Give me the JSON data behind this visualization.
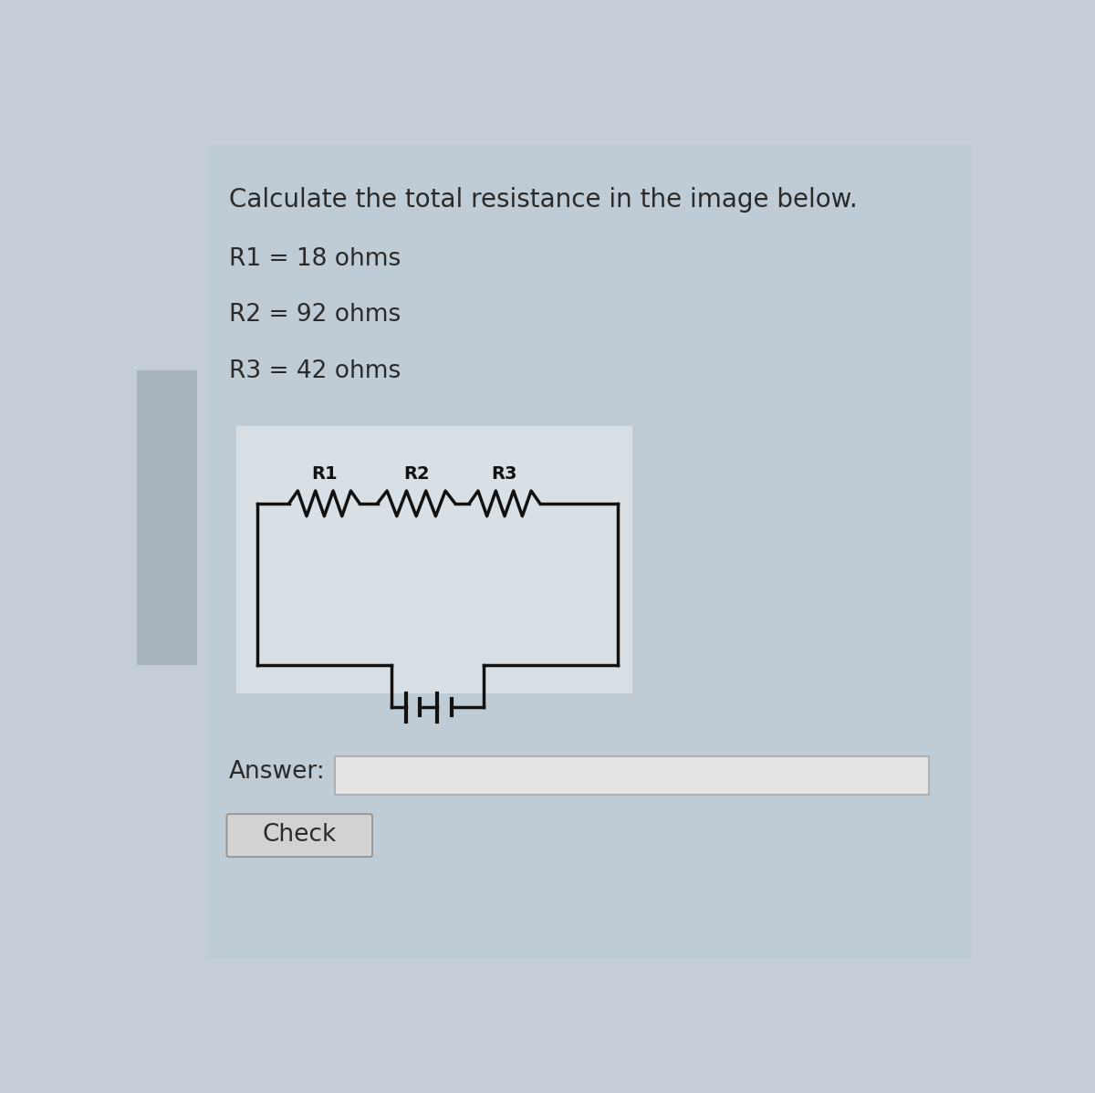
{
  "title": "Calculate the total resistance in the image below.",
  "r1_label": "R1 = 18 ohms",
  "r2_label": "R2 = 92 ohms",
  "r3_label": "R3 = 42 ohms",
  "answer_label": "Answer:",
  "check_label": "Check",
  "bg_outer": "#c5ced6",
  "bg_main": "#bfcdd6",
  "bg_circuit": "#dce3e8",
  "bg_answer_box": "#dedede",
  "bg_check_btn": "#d0d0d0",
  "text_color": "#2a2a2a",
  "circuit_line_color": "#111111",
  "left_tab_color": "#a8b4bc",
  "title_fontsize": 20,
  "label_fontsize": 19,
  "circuit_label_fontsize": 14
}
